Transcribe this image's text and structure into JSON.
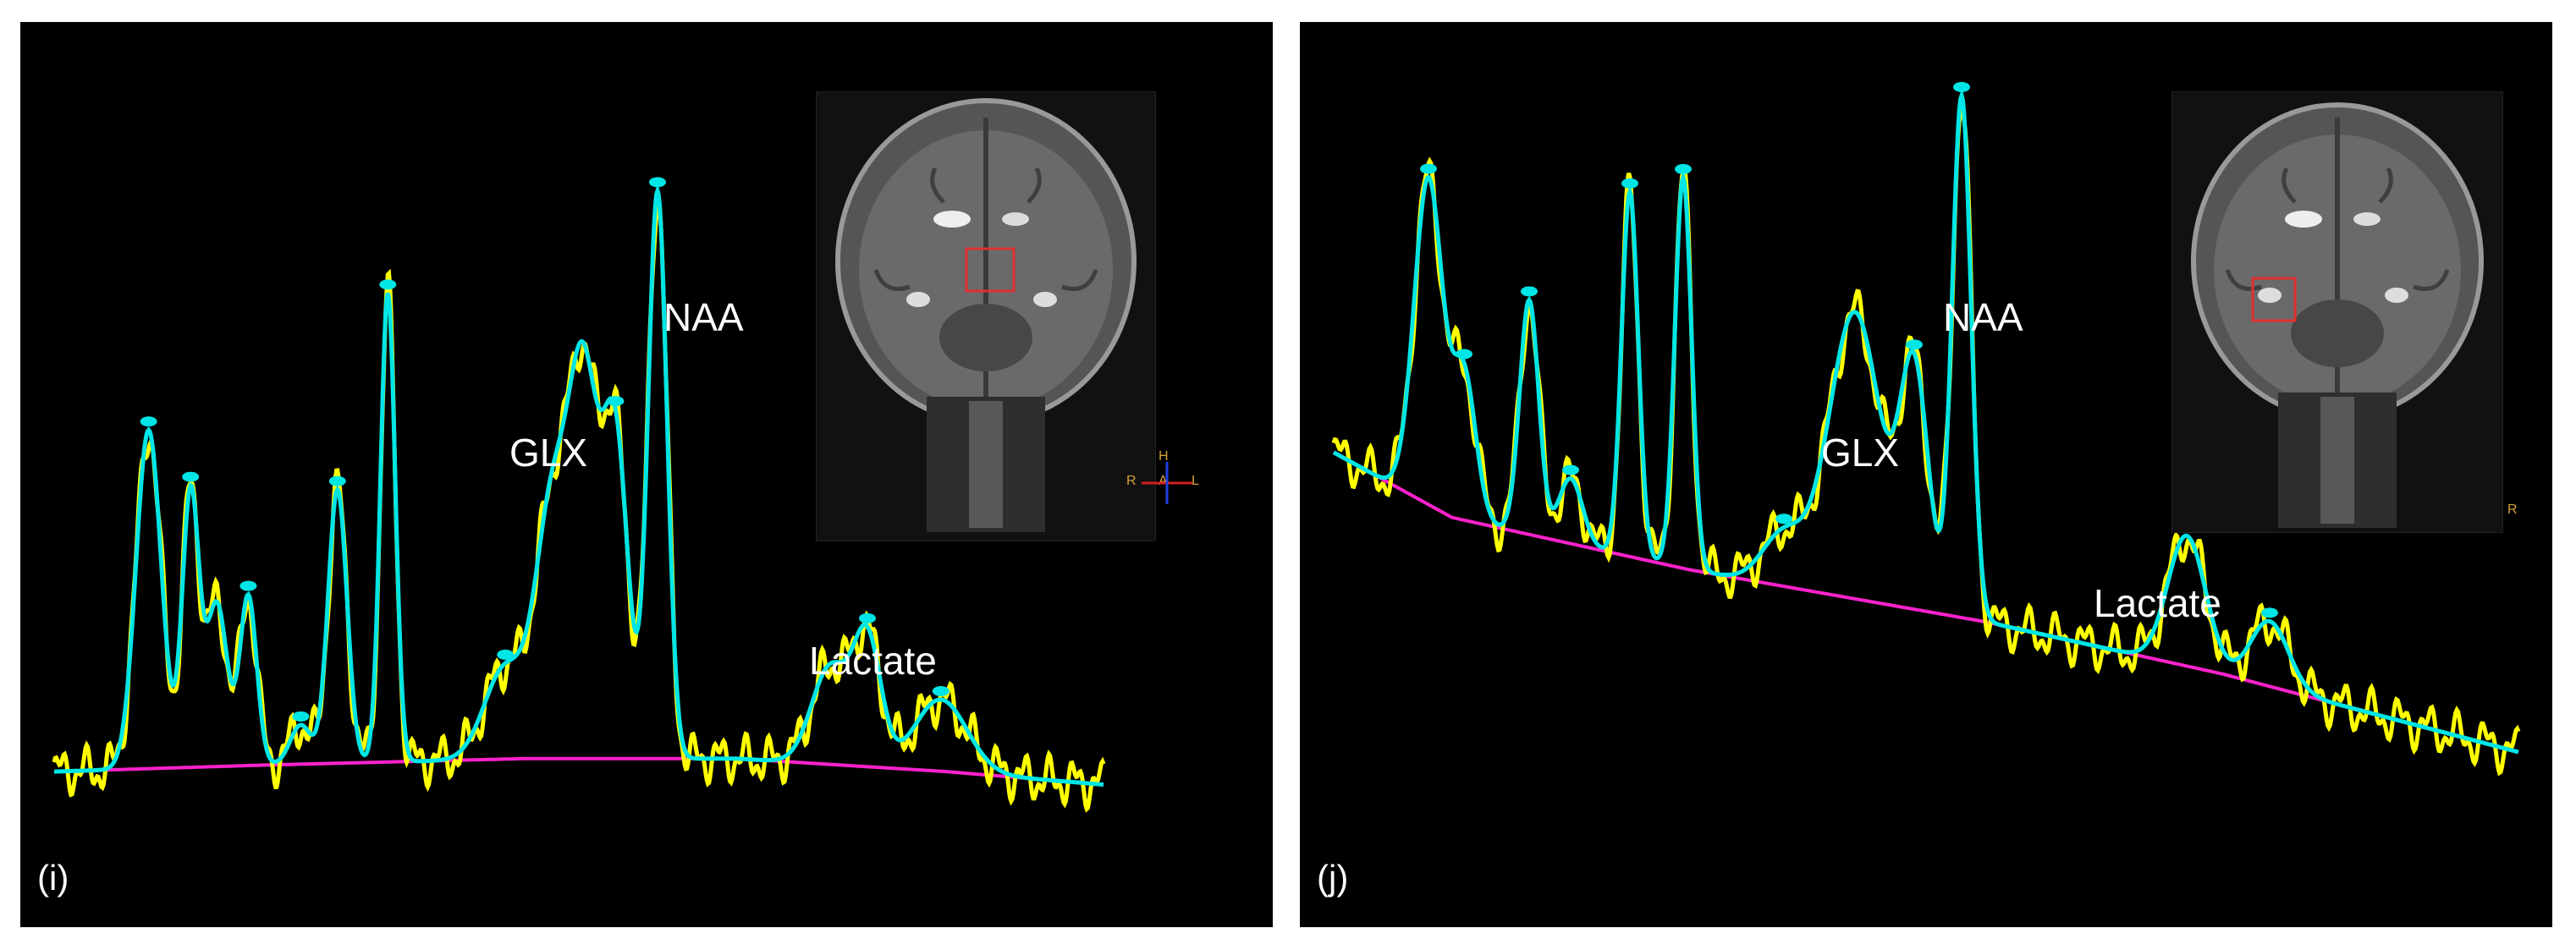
{
  "panels": [
    {
      "id": "i",
      "label": "(i)",
      "annotations": {
        "naa": "NAA",
        "glx": "GLX",
        "lactate": "Lactate"
      },
      "orientation_letters": [
        "H",
        "R",
        "A",
        "L"
      ]
    },
    {
      "id": "j",
      "label": "(j)",
      "annotations": {
        "naa": "NAA",
        "glx": "GLX",
        "lactate": "Lactate"
      },
      "orientation_letters": [
        "R"
      ]
    }
  ],
  "colors": {
    "measured": "#ffff00",
    "fit": "#00e5e5",
    "baseline": "#ff22cc",
    "voi_box": "#e03030",
    "orientation_text": "#d8a23a"
  },
  "chart_data": [
    {
      "type": "line",
      "panel": "(i)",
      "title": "",
      "xlabel": "",
      "ylabel": "",
      "grid": false,
      "xlim": [
        0,
        1
      ],
      "ylim": [
        0,
        1
      ],
      "baseline_points": [
        [
          0.0,
          0.07
        ],
        [
          0.2,
          0.08
        ],
        [
          0.45,
          0.09
        ],
        [
          0.65,
          0.09
        ],
        [
          0.85,
          0.07
        ],
        [
          1.0,
          0.05
        ]
      ],
      "peaks": [
        {
          "x": 0.09,
          "height": 0.52,
          "width": 0.012
        },
        {
          "x": 0.13,
          "height": 0.42,
          "width": 0.008
        },
        {
          "x": 0.155,
          "height": 0.25,
          "width": 0.01
        },
        {
          "x": 0.185,
          "height": 0.26,
          "width": 0.008
        },
        {
          "x": 0.235,
          "height": 0.06,
          "width": 0.01
        },
        {
          "x": 0.27,
          "height": 0.42,
          "width": 0.009
        },
        {
          "x": 0.318,
          "height": 0.72,
          "width": 0.007
        },
        {
          "x": 0.43,
          "height": 0.14,
          "width": 0.02
        },
        {
          "x": 0.475,
          "height": 0.38,
          "width": 0.016
        },
        {
          "x": 0.505,
          "height": 0.55,
          "width": 0.014
        },
        {
          "x": 0.535,
          "height": 0.48,
          "width": 0.012
        },
        {
          "x": 0.575,
          "height": 0.87,
          "width": 0.009
        },
        {
          "x": 0.74,
          "height": 0.15,
          "width": 0.018
        },
        {
          "x": 0.775,
          "height": 0.19,
          "width": 0.013
        },
        {
          "x": 0.845,
          "height": 0.11,
          "width": 0.025
        }
      ],
      "fit_markers_x": [
        0.09,
        0.13,
        0.185,
        0.235,
        0.27,
        0.318,
        0.43,
        0.535,
        0.575,
        0.775,
        0.845
      ]
    },
    {
      "type": "line",
      "panel": "(j)",
      "title": "",
      "xlabel": "",
      "ylabel": "",
      "grid": false,
      "xlim": [
        0,
        1
      ],
      "ylim": [
        0,
        1
      ],
      "baseline_points": [
        [
          0.0,
          0.56
        ],
        [
          0.1,
          0.46
        ],
        [
          0.3,
          0.38
        ],
        [
          0.55,
          0.3
        ],
        [
          0.75,
          0.22
        ],
        [
          1.0,
          0.1
        ]
      ],
      "peaks": [
        {
          "x": 0.08,
          "height": 0.5,
          "width": 0.012
        },
        {
          "x": 0.11,
          "height": 0.22,
          "width": 0.01
        },
        {
          "x": 0.165,
          "height": 0.36,
          "width": 0.008
        },
        {
          "x": 0.2,
          "height": 0.1,
          "width": 0.01
        },
        {
          "x": 0.25,
          "height": 0.56,
          "width": 0.007
        },
        {
          "x": 0.295,
          "height": 0.6,
          "width": 0.007
        },
        {
          "x": 0.38,
          "height": 0.08,
          "width": 0.018
        },
        {
          "x": 0.44,
          "height": 0.44,
          "width": 0.022
        },
        {
          "x": 0.49,
          "height": 0.36,
          "width": 0.012
        },
        {
          "x": 0.53,
          "height": 0.8,
          "width": 0.008
        },
        {
          "x": 0.72,
          "height": 0.2,
          "width": 0.016
        },
        {
          "x": 0.79,
          "height": 0.1,
          "width": 0.016
        }
      ],
      "fit_markers_x": [
        0.08,
        0.11,
        0.165,
        0.2,
        0.25,
        0.295,
        0.38,
        0.49,
        0.53,
        0.72,
        0.79
      ]
    }
  ]
}
